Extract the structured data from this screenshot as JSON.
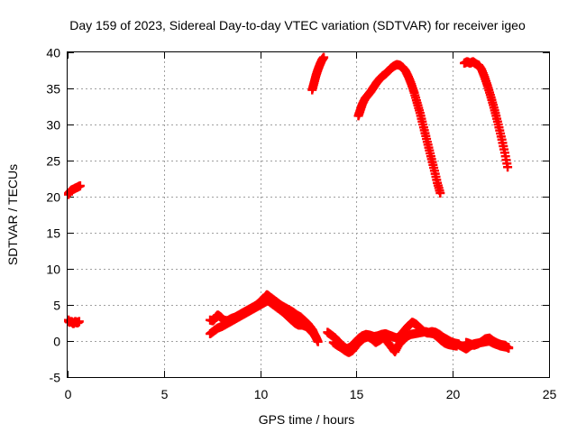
{
  "chart_data": {
    "type": "scatter",
    "title": "Day 159 of 2023, Sidereal Day-to-day VTEC variation (SDTVAR) for receiver igeo",
    "xlabel": "GPS time / hours",
    "ylabel": "SDTVAR / TECUs",
    "xlim": [
      0,
      25
    ],
    "ylim": [
      -5,
      40
    ],
    "xticks": [
      0,
      5,
      10,
      15,
      20,
      25
    ],
    "yticks": [
      -5,
      0,
      5,
      10,
      15,
      20,
      25,
      30,
      35,
      40
    ],
    "grid": true,
    "series": [
      {
        "name": "SDTVAR",
        "color": "#ff0000",
        "marker": "plus",
        "segments": [
          [
            [
              0.0,
              20.3
            ],
            [
              0.1,
              20.6
            ],
            [
              0.2,
              20.9
            ],
            [
              0.35,
              21.1
            ],
            [
              0.5,
              21.3
            ],
            [
              0.65,
              21.5
            ]
          ],
          [
            [
              0.0,
              2.9
            ],
            [
              0.1,
              2.6
            ],
            [
              0.2,
              2.7
            ],
            [
              0.3,
              2.4
            ],
            [
              0.4,
              2.7
            ],
            [
              0.5,
              2.5
            ],
            [
              0.6,
              2.7
            ]
          ],
          [
            [
              7.4,
              2.9
            ],
            [
              7.55,
              2.8
            ],
            [
              7.7,
              3.3
            ],
            [
              7.8,
              3.6
            ],
            [
              7.95,
              3.3
            ],
            [
              8.1,
              2.9
            ],
            [
              8.3,
              2.8
            ],
            [
              8.5,
              3.1
            ],
            [
              8.7,
              3.3
            ],
            [
              8.9,
              3.6
            ],
            [
              9.1,
              3.9
            ],
            [
              9.3,
              4.2
            ],
            [
              9.5,
              4.5
            ],
            [
              9.7,
              4.8
            ],
            [
              9.9,
              5.1
            ],
            [
              10.05,
              5.6
            ],
            [
              10.2,
              5.9
            ],
            [
              10.35,
              6.4
            ],
            [
              10.5,
              6.1
            ],
            [
              10.7,
              5.7
            ],
            [
              10.9,
              5.3
            ],
            [
              11.1,
              4.9
            ],
            [
              11.3,
              4.6
            ],
            [
              11.5,
              4.3
            ],
            [
              11.7,
              4.0
            ],
            [
              11.9,
              3.6
            ],
            [
              12.1,
              3.3
            ],
            [
              12.3,
              2.8
            ],
            [
              12.5,
              2.3
            ],
            [
              12.7,
              1.6
            ],
            [
              12.8,
              1.0
            ],
            [
              12.9,
              0.5
            ],
            [
              13.0,
              -0.1
            ]
          ],
          [
            [
              7.4,
              1.0
            ],
            [
              7.6,
              1.4
            ],
            [
              7.8,
              1.8
            ],
            [
              8.0,
              2.0
            ],
            [
              8.2,
              2.3
            ],
            [
              8.4,
              2.6
            ],
            [
              8.6,
              2.9
            ],
            [
              8.8,
              3.2
            ],
            [
              9.0,
              3.5
            ],
            [
              9.2,
              3.8
            ],
            [
              9.4,
              4.1
            ],
            [
              9.6,
              4.4
            ],
            [
              9.8,
              4.7
            ],
            [
              10.0,
              5.0
            ],
            [
              10.2,
              5.3
            ],
            [
              10.4,
              5.6
            ],
            [
              10.6,
              5.2
            ],
            [
              10.8,
              4.8
            ],
            [
              11.0,
              4.4
            ],
            [
              11.2,
              4.0
            ],
            [
              11.4,
              3.5
            ],
            [
              11.6,
              3.0
            ],
            [
              11.8,
              2.5
            ],
            [
              12.0,
              2.2
            ],
            [
              12.2,
              2.2
            ],
            [
              12.4,
              2.0
            ],
            [
              12.6,
              1.5
            ],
            [
              12.8,
              0.9
            ],
            [
              12.9,
              0.5
            ]
          ],
          [
            [
              12.7,
              34.8
            ],
            [
              12.8,
              35.8
            ],
            [
              12.9,
              36.8
            ],
            [
              13.0,
              37.6
            ],
            [
              13.1,
              38.3
            ],
            [
              13.2,
              38.9
            ],
            [
              13.3,
              39.3
            ]
          ],
          [
            [
              13.5,
              1.2
            ],
            [
              13.7,
              0.8
            ],
            [
              13.9,
              0.4
            ],
            [
              14.1,
              -0.2
            ],
            [
              14.3,
              -0.7
            ],
            [
              14.5,
              -1.1
            ],
            [
              14.7,
              -0.8
            ],
            [
              14.9,
              -0.3
            ],
            [
              15.1,
              0.3
            ],
            [
              15.3,
              0.7
            ],
            [
              15.5,
              0.9
            ],
            [
              15.7,
              0.8
            ],
            [
              15.9,
              0.6
            ],
            [
              16.1,
              0.7
            ],
            [
              16.3,
              0.9
            ],
            [
              16.5,
              1.0
            ],
            [
              16.7,
              0.8
            ],
            [
              16.9,
              0.6
            ],
            [
              17.1,
              0.4
            ],
            [
              17.3,
              0.8
            ],
            [
              17.5,
              1.5
            ],
            [
              17.7,
              2.1
            ],
            [
              17.9,
              2.6
            ],
            [
              18.1,
              2.3
            ],
            [
              18.3,
              1.8
            ],
            [
              18.5,
              1.3
            ],
            [
              18.7,
              1.1
            ],
            [
              18.9,
              1.3
            ],
            [
              19.1,
              1.2
            ],
            [
              19.3,
              0.9
            ],
            [
              19.5,
              0.5
            ],
            [
              19.7,
              0.2
            ],
            [
              19.9,
              -0.1
            ],
            [
              20.1,
              -0.3
            ],
            [
              20.3,
              -0.4
            ]
          ],
          [
            [
              13.8,
              -0.2
            ],
            [
              14.0,
              -0.6
            ],
            [
              14.2,
              -0.9
            ],
            [
              14.4,
              -1.3
            ],
            [
              14.6,
              -1.6
            ],
            [
              14.8,
              -1.3
            ],
            [
              15.0,
              -0.6
            ],
            [
              15.2,
              0.0
            ],
            [
              15.4,
              0.4
            ],
            [
              15.6,
              0.6
            ],
            [
              15.8,
              0.3
            ],
            [
              16.0,
              -0.2
            ],
            [
              16.2,
              0.1
            ],
            [
              16.4,
              0.5
            ],
            [
              16.6,
              -0.1
            ],
            [
              16.8,
              -0.8
            ],
            [
              17.0,
              -1.5
            ],
            [
              17.2,
              -0.5
            ],
            [
              17.4,
              0.1
            ],
            [
              17.6,
              0.6
            ],
            [
              17.8,
              0.9
            ],
            [
              18.0,
              1.0
            ],
            [
              18.2,
              1.1
            ],
            [
              18.4,
              1.2
            ],
            [
              18.6,
              1.3
            ],
            [
              18.8,
              1.1
            ],
            [
              19.0,
              1.0
            ],
            [
              19.2,
              0.6
            ],
            [
              19.4,
              0.1
            ],
            [
              19.6,
              -0.3
            ],
            [
              19.8,
              -0.5
            ],
            [
              20.0,
              -0.6
            ],
            [
              20.2,
              -0.7
            ]
          ],
          [
            [
              15.1,
              31.2
            ],
            [
              15.2,
              32.0
            ],
            [
              15.3,
              32.8
            ],
            [
              15.45,
              33.6
            ],
            [
              15.6,
              34.1
            ],
            [
              15.75,
              34.6
            ],
            [
              15.9,
              35.2
            ],
            [
              16.05,
              35.8
            ],
            [
              16.2,
              36.3
            ],
            [
              16.35,
              36.7
            ],
            [
              16.5,
              37.0
            ],
            [
              16.65,
              37.4
            ],
            [
              16.8,
              37.8
            ],
            [
              16.95,
              38.1
            ],
            [
              17.1,
              38.3
            ],
            [
              17.25,
              38.2
            ],
            [
              17.4,
              37.9
            ],
            [
              17.55,
              37.4
            ],
            [
              17.7,
              36.6
            ],
            [
              17.85,
              35.6
            ],
            [
              18.0,
              34.4
            ],
            [
              18.15,
              33.0
            ],
            [
              18.3,
              31.6
            ],
            [
              18.45,
              30.0
            ],
            [
              18.6,
              28.4
            ],
            [
              18.75,
              26.8
            ],
            [
              18.9,
              25.2
            ],
            [
              19.05,
              23.6
            ],
            [
              19.2,
              21.9
            ],
            [
              19.35,
              20.5
            ]
          ],
          [
            [
              20.3,
              -0.5
            ],
            [
              20.5,
              -0.8
            ],
            [
              20.7,
              -1.1
            ],
            [
              20.9,
              -0.7
            ],
            [
              21.1,
              -0.4
            ],
            [
              21.3,
              -0.3
            ],
            [
              21.5,
              -0.2
            ],
            [
              21.7,
              -0.1
            ],
            [
              21.9,
              0.0
            ],
            [
              22.1,
              -0.3
            ],
            [
              22.3,
              -0.5
            ],
            [
              22.5,
              -0.7
            ],
            [
              22.7,
              -0.8
            ],
            [
              22.9,
              -0.9
            ]
          ],
          [
            [
              20.7,
              -0.2
            ],
            [
              20.9,
              -0.4
            ],
            [
              21.1,
              -0.6
            ],
            [
              21.3,
              -0.4
            ],
            [
              21.5,
              -0.1
            ],
            [
              21.7,
              0.3
            ],
            [
              21.9,
              0.4
            ],
            [
              22.1,
              0.0
            ],
            [
              22.3,
              -0.3
            ],
            [
              22.5,
              -0.5
            ],
            [
              22.7,
              -0.6
            ],
            [
              22.9,
              -1.0
            ]
          ],
          [
            [
              20.6,
              38.5
            ],
            [
              20.75,
              38.7
            ],
            [
              20.9,
              38.5
            ],
            [
              21.05,
              38.7
            ],
            [
              21.2,
              38.4
            ],
            [
              21.35,
              38.2
            ],
            [
              21.5,
              37.6
            ],
            [
              21.65,
              36.6
            ],
            [
              21.8,
              35.4
            ],
            [
              21.95,
              34.1
            ],
            [
              22.1,
              32.7
            ],
            [
              22.25,
              31.2
            ],
            [
              22.4,
              29.6
            ],
            [
              22.55,
              27.9
            ],
            [
              22.7,
              26.1
            ],
            [
              22.85,
              24.1
            ]
          ]
        ]
      }
    ]
  }
}
